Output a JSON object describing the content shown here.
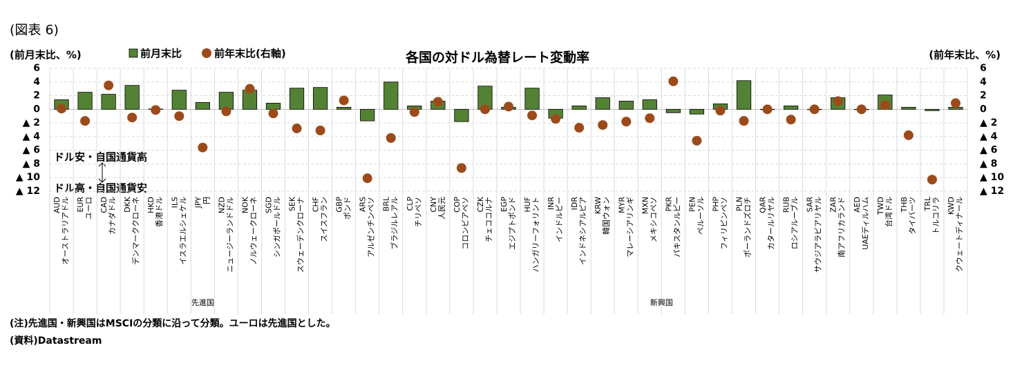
{
  "chart_data": {
    "type": "bar-dot",
    "figure_label": "(図表 6)",
    "title": "各国の対ドル為替レート変動率",
    "y_label": "(前月末比、%)",
    "y2_label": "(前年末比、%)",
    "annotations": [
      "ドル安・自国通貨高",
      "ドル高・自国通貨安"
    ],
    "notes": [
      "(注)先進国・新興国はMSCIの分類に沿って分類。ユーロは先進国とした。",
      "(資料)Datastream"
    ],
    "categories": [
      "AUD",
      "EUR",
      "CAD",
      "DKK",
      "HKD",
      "ILS",
      "JPY",
      "NZD",
      "NOK",
      "SGD",
      "SEK",
      "CHF",
      "GBP",
      "ARS",
      "BRL",
      "CLP",
      "CNY",
      "COP",
      "CZK",
      "EGP",
      "HUF",
      "INR",
      "IDR",
      "KRW",
      "MYR",
      "MXN",
      "PKR",
      "PEN",
      "PHP",
      "PLN",
      "QAR",
      "RUB",
      "SAR",
      "ZAR",
      "AED",
      "TWD",
      "THB",
      "TRL",
      "KWD"
    ],
    "category_names": [
      "オーストラリアドル",
      "ユーロ",
      "カナダドル",
      "デンマーククローネ",
      "香港ドル",
      "イスラエルシェケル",
      "円",
      "ニュージーランドドル",
      "ノルウェークローネ",
      "シンガポールドル",
      "スウェーデンクローナ",
      "スイスフラン",
      "ポンド",
      "アルゼンチンペソ",
      "ブラジルレアル",
      "チリペソ",
      "人民元",
      "コロンビアペソ",
      "チェココルナ",
      "エジプトポンド",
      "ハンガリーフォリント",
      "インドルピー",
      "インドネシアルピア",
      "韓国ウォン",
      "マレーシアリンギ",
      "メキシコペソ",
      "パキスタンルピー",
      "ペルーソル",
      "フィリピンペソ",
      "ポーランドズロチ",
      "カタールリヤル",
      "ロシアルーブル",
      "サウジアラビアリヤル",
      "南アフリカランド",
      "UAEディルハム",
      "台湾ドル",
      "タイバーツ",
      "トルコリラ",
      "クウェートディナール"
    ],
    "groups": [
      {
        "name": "先進国",
        "count": 13
      },
      {
        "name": "新興国",
        "count": 26
      }
    ],
    "series": [
      {
        "name": "前月末比",
        "color": "#548235",
        "values": [
          1.4,
          2.5,
          2.2,
          3.5,
          0.05,
          2.8,
          1.0,
          2.5,
          2.8,
          0.9,
          3.1,
          3.2,
          0.3,
          -1.7,
          4.0,
          0.5,
          1.2,
          -1.8,
          3.4,
          0.3,
          3.1,
          -1.3,
          0.5,
          1.7,
          1.2,
          1.4,
          -0.5,
          -0.7,
          0.8,
          4.2,
          0,
          0.5,
          0,
          1.7,
          0,
          2.1,
          0.3,
          -0.2,
          0.3
        ]
      },
      {
        "name": "前年末比(右軸)",
        "color": "#9c4a1a",
        "axis": "y2",
        "values": [
          0.1,
          -1.7,
          3.5,
          -1.2,
          -0.1,
          -1.0,
          -5.6,
          -0.3,
          3.0,
          -0.6,
          -2.8,
          -3.1,
          1.3,
          -10.1,
          -4.2,
          -0.4,
          1.1,
          -8.6,
          0,
          0.4,
          -0.9,
          -1.4,
          -2.7,
          -2.3,
          -1.8,
          -1.3,
          4.1,
          -4.6,
          -0.2,
          -1.7,
          0,
          -1.5,
          0,
          1.2,
          0,
          0.6,
          -3.8,
          -10.3,
          0.9
        ]
      }
    ],
    "ylim": [
      -12,
      6
    ],
    "yticks": [
      6,
      4,
      2,
      0,
      {
        "value": -2,
        "label": "▲ 2"
      },
      {
        "value": -4,
        "label": "▲ 4"
      },
      {
        "value": -6,
        "label": "▲ 6"
      },
      {
        "value": -8,
        "label": "▲ 8"
      },
      {
        "value": -10,
        "label": "▲ 10"
      },
      {
        "value": -12,
        "label": "▲ 12"
      }
    ],
    "y2lim": [
      -12,
      6
    ],
    "y2ticks": [
      6,
      4,
      2,
      0,
      {
        "value": -2,
        "label": "▲ 2"
      },
      {
        "value": -4,
        "label": "▲ 4"
      },
      {
        "value": -6,
        "label": "▲ 6"
      },
      {
        "value": -8,
        "label": "▲ 8"
      },
      {
        "value": -10,
        "label": "▲ 10"
      },
      {
        "value": -12,
        "label": "▲ 12"
      }
    ],
    "grid": true
  }
}
